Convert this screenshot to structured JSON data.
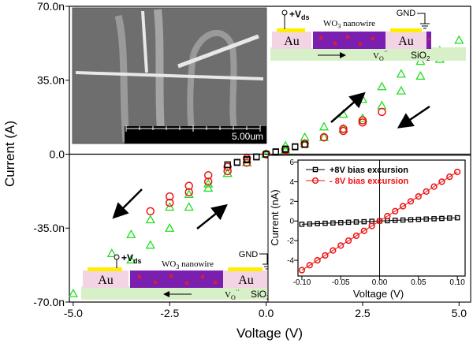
{
  "chart_data": [
    {
      "type": "scatter",
      "xlabel": "Voltage (V)",
      "ylabel": "Current (A)",
      "xlim": [
        -5.1,
        5.3
      ],
      "ylim": [
        -7e-08,
        7e-08
      ],
      "xticks": [
        {
          "value": -5,
          "label": "-5.0"
        },
        {
          "value": -2.5,
          "label": "-2.5"
        },
        {
          "value": 0,
          "label": "0.0"
        },
        {
          "value": 2.5,
          "label": "2.5"
        },
        {
          "value": 5,
          "label": "5.0"
        }
      ],
      "yticks": [
        {
          "value": -7e-08,
          "label": "-70.0n"
        },
        {
          "value": -3.5e-08,
          "label": "-35.0n"
        },
        {
          "value": 0,
          "label": "0.0"
        },
        {
          "value": 3.5e-08,
          "label": "35.0n"
        },
        {
          "value": 7e-08,
          "label": "70.0n"
        }
      ],
      "series": [
        {
          "color": "#22dd22",
          "marker": "triangle",
          "x": [
            0,
            0.5,
            1,
            1.5,
            2,
            2.5,
            3,
            3.5,
            4,
            4.5,
            5,
            4.5,
            4,
            3.5,
            3,
            2.5,
            2,
            1.5,
            1,
            0.5,
            0,
            -0.5,
            -1,
            -1.5,
            -2,
            -2.5,
            -3,
            -3.5,
            -4,
            -4.5,
            -5,
            -4.5,
            -4,
            -3.5,
            -3,
            -2.5,
            -2,
            -1.5,
            -1,
            -0.5,
            0
          ],
          "values": [
            0,
            4e-09,
            8e-09,
            1.3e-08,
            1.9e-08,
            2.6e-08,
            3.2e-08,
            3.8e-08,
            4.4e-08,
            4.9e-08,
            5.4e-08,
            4.5e-08,
            3.7e-08,
            3e-08,
            2.3e-08,
            1.7e-08,
            1.2e-08,
            8e-09,
            5e-09,
            2e-09,
            0,
            -4e-09,
            -9e-09,
            -1.6e-08,
            -2.5e-08,
            -3.5e-08,
            -4.3e-08,
            -5e-08,
            -5.6e-08,
            -6.1e-08,
            -6.6e-08,
            -5.7e-08,
            -4.7e-08,
            -3.8e-08,
            -3.1e-08,
            -2.5e-08,
            -1.9e-08,
            -1.4e-08,
            -9e-09,
            -4e-09,
            0
          ]
        },
        {
          "color": "#ee1111",
          "marker": "circle",
          "x": [
            0,
            0.5,
            1,
            1.5,
            2,
            2.5,
            3,
            2.5,
            2,
            1.5,
            1,
            0.5,
            0,
            -0.5,
            -1,
            -1.5,
            -2,
            -2.5,
            -3,
            -2.5,
            -2,
            -1.5,
            -1,
            -0.5,
            0
          ],
          "values": [
            0,
            2e-09,
            5e-09,
            8e-09,
            1.1e-08,
            1.5e-08,
            2e-08,
            1.6e-08,
            1.2e-08,
            8e-09,
            5e-09,
            2e-09,
            0,
            -4e-09,
            -8e-09,
            -1.3e-08,
            -1.8e-08,
            -2.3e-08,
            -2.7e-08,
            -2e-08,
            -1.5e-08,
            -1e-08,
            -6e-09,
            -2e-09,
            0
          ]
        },
        {
          "color": "#000000",
          "marker": "square",
          "x": [
            -1,
            -0.75,
            -0.5,
            -0.25,
            0,
            0.25,
            0.5,
            0.75,
            1,
            0.75,
            0.5,
            0.25,
            0,
            -0.25,
            -0.5,
            -0.75,
            -1
          ],
          "values": [
            -5e-09,
            -3.8e-09,
            -2.5e-09,
            -1.2e-09,
            0,
            1.2e-09,
            2.5e-09,
            3.6e-09,
            4.5e-09,
            3.4e-09,
            2.2e-09,
            1e-09,
            0,
            -1.4e-09,
            -2.8e-09,
            -4e-09,
            -5e-09
          ]
        }
      ]
    },
    {
      "type": "line",
      "xlabel": "Voltage (V)",
      "ylabel": "Current (nA)",
      "xlim": [
        -0.105,
        0.11
      ],
      "ylim": [
        -5.6,
        6.2
      ],
      "xticks": [
        {
          "value": -0.1,
          "label": "-0.10"
        },
        {
          "value": -0.05,
          "label": "-0.05"
        },
        {
          "value": 0,
          "label": "0.00"
        },
        {
          "value": 0.05,
          "label": "0.05"
        },
        {
          "value": 0.1,
          "label": "0.10"
        }
      ],
      "yticks": [
        -4,
        -2,
        0,
        2,
        4,
        6
      ],
      "legend": "upper left",
      "x": [
        -0.1,
        -0.09,
        -0.08,
        -0.07,
        -0.06,
        -0.05,
        -0.04,
        -0.03,
        -0.02,
        -0.01,
        0,
        0.01,
        0.02,
        0.03,
        0.04,
        0.05,
        0.06,
        0.07,
        0.08,
        0.09,
        0.1
      ],
      "series": [
        {
          "name": "+8V bias excursion",
          "color": "#000000",
          "marker": "square",
          "values": [
            -0.33,
            -0.3,
            -0.26,
            -0.23,
            -0.2,
            -0.17,
            -0.13,
            -0.1,
            -0.07,
            -0.03,
            0,
            0.03,
            0.07,
            0.1,
            0.13,
            0.17,
            0.2,
            0.23,
            0.26,
            0.3,
            0.33
          ]
        },
        {
          "name": "- 8V bias excursion",
          "color": "#ee1111",
          "marker": "circle",
          "values": [
            -5,
            -4.5,
            -4,
            -3.5,
            -3,
            -2.5,
            -2,
            -1.5,
            -1,
            -0.5,
            0,
            0.5,
            1,
            1.5,
            2,
            2.5,
            3,
            3.5,
            4,
            4.5,
            5
          ]
        }
      ]
    }
  ],
  "sem_image": {
    "scale_label": "5.00um"
  },
  "schematics": [
    {
      "bias": "+V",
      "bias_sub": "ds",
      "material": "WO",
      "material_sub": "3",
      "wire": " nanowire",
      "ground": "GND",
      "left_pad": "Au",
      "right_pad": "Au",
      "substrate": "SiO",
      "substrate_sub": "2",
      "vacancy": "V",
      "vacancy_sub": "O",
      "vacancy_sup": "··"
    },
    {
      "bias": "+V",
      "bias_sub": "ds",
      "material": "WO",
      "material_sub": "3",
      "wire": " nanowire",
      "ground": "GND",
      "left_pad": "Au",
      "right_pad": "Au",
      "substrate": "SiO",
      "substrate_sub": "2",
      "vacancy": "V",
      "vacancy_sub": "O",
      "vacancy_sup": "··"
    }
  ]
}
